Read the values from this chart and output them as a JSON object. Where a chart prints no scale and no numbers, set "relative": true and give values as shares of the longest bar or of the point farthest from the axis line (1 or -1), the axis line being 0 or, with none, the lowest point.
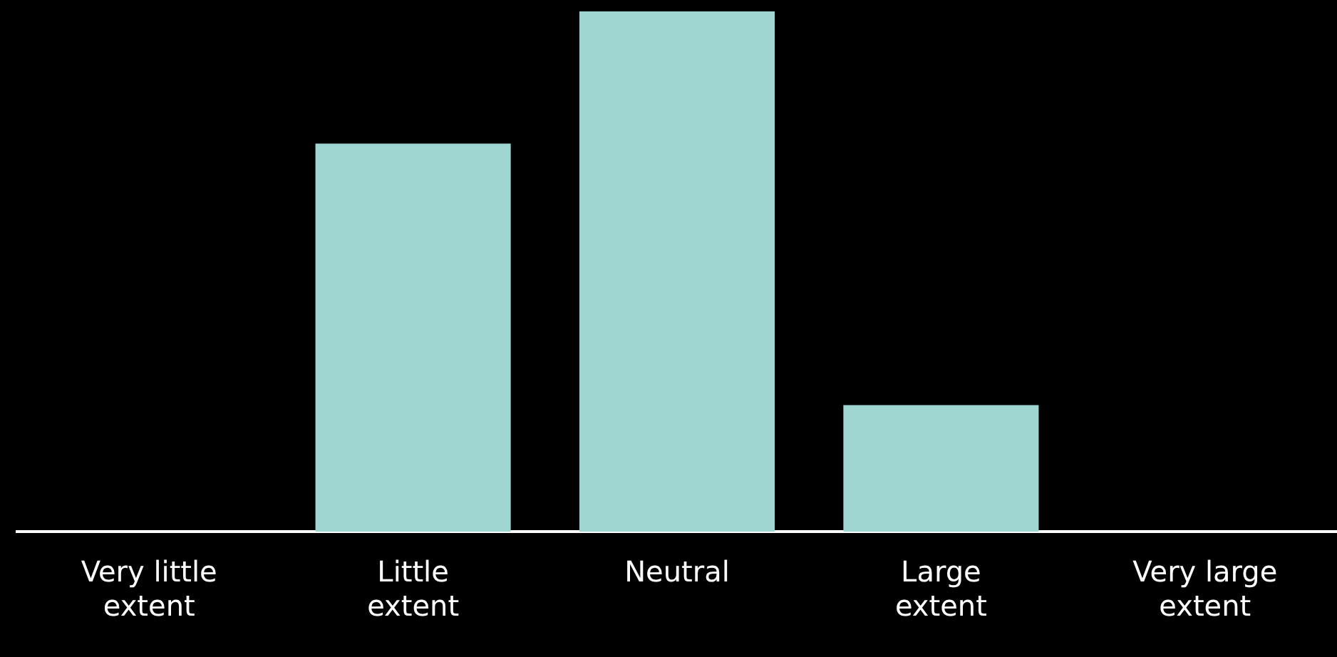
{
  "chart_data": {
    "type": "bar",
    "relative": true,
    "categories": [
      "Very little extent",
      "Little extent",
      "Neutral",
      "Large extent",
      "Very large extent"
    ],
    "values": [
      0,
      0.746,
      1,
      0.243,
      0
    ],
    "color": "#a0d6d2"
  }
}
